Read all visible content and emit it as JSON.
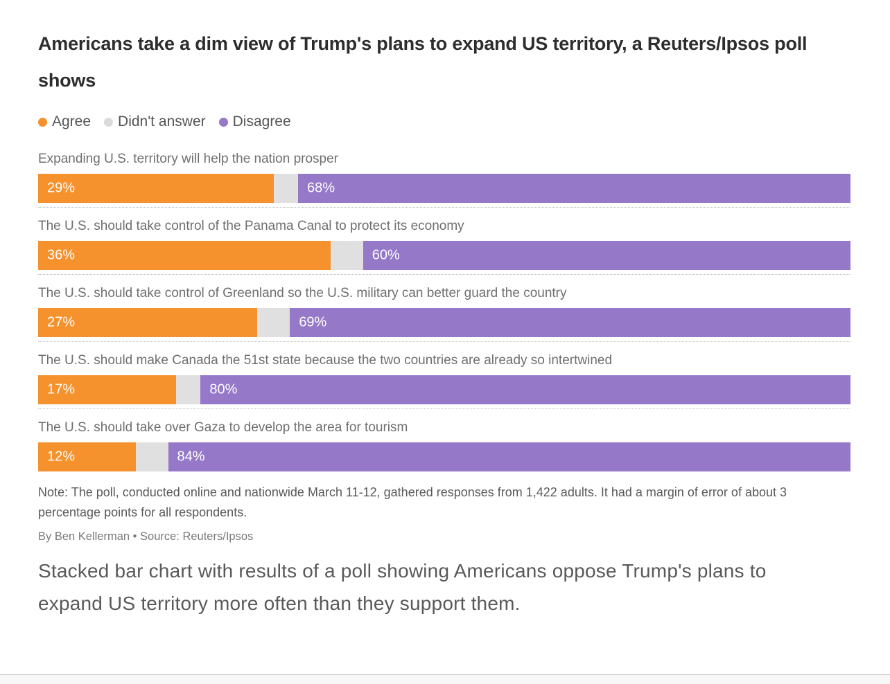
{
  "page": {
    "title": "Americans take a dim view of Trump's plans to expand US territory, a Reuters/Ipsos poll shows",
    "note": "Note: The poll, conducted online and nationwide March 11-12, gathered responses from 1,422 adults. It had a margin of error of about 3 percentage points for all respondents.",
    "byline": "By Ben Kellerman • Source: Reuters/Ipsos",
    "caption": "Stacked bar chart with results of a poll showing Americans oppose Trump's plans to expand US territory more often than they support them."
  },
  "legend": {
    "items": [
      {
        "label": "Agree",
        "color": "#F5922D"
      },
      {
        "label": "Didn't answer",
        "color": "#DBDBDB"
      },
      {
        "label": "Disagree",
        "color": "#9678C8"
      }
    ]
  },
  "colors": {
    "agree": "#F5922D",
    "didnt_answer": "#E0E0E0",
    "disagree": "#9678C8",
    "title_text": "#2d2d2d",
    "body_text": "#595959",
    "bar_value_text": "#ffffff"
  },
  "chart_data": {
    "type": "bar",
    "orientation": "horizontal",
    "stacked": true,
    "unit": "%",
    "xlim": [
      0,
      100
    ],
    "grid": false,
    "legend_position": "top",
    "title": "Americans take a dim view of Trump's plans to expand US territory, a Reuters/Ipsos poll shows",
    "categories": [
      "Expanding U.S. territory will help the nation prosper",
      "The U.S. should take control of the Panama Canal to protect its economy",
      "The U.S. should take control of Greenland so the U.S. military can better guard the country",
      "The U.S. should make Canada the 51st state because the two countries are already so intertwined",
      "The U.S. should take over Gaza to develop the area for tourism"
    ],
    "series": [
      {
        "name": "Agree",
        "key": "agree",
        "color": "#F5922D",
        "show_labels": true,
        "values": [
          29,
          36,
          27,
          17,
          12
        ]
      },
      {
        "name": "Didn't answer",
        "key": "didnt-answer",
        "color": "#E0E0E0",
        "show_labels": false,
        "values": [
          3,
          4,
          4,
          3,
          4
        ]
      },
      {
        "name": "Disagree",
        "key": "disagree",
        "color": "#9678C8",
        "show_labels": true,
        "values": [
          68,
          60,
          69,
          80,
          84
        ]
      }
    ],
    "value_labels_shown": [
      "29%",
      "68%",
      "36%",
      "60%",
      "27%",
      "69%",
      "17%",
      "80%",
      "12%",
      "84%"
    ]
  }
}
